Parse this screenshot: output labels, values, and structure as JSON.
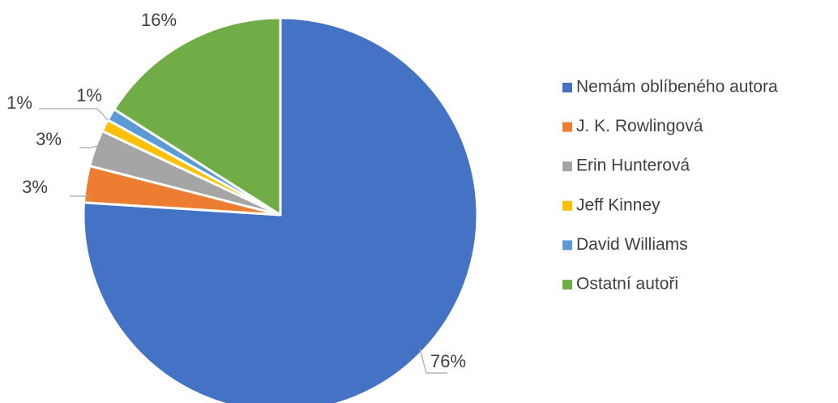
{
  "chart_data": {
    "type": "pie",
    "categories": [
      "Nemám oblíbeného autora",
      "J. K. Rowlingová",
      "Erin Hunterová",
      "Jeff Kinney",
      "David Williams",
      "Ostatní autoři"
    ],
    "values": [
      76,
      3,
      3,
      1,
      1,
      16
    ],
    "labels": [
      "76%",
      "3%",
      "3%",
      "1%",
      "1%",
      "16%"
    ],
    "colors": [
      "#4472C4",
      "#ED7D31",
      "#A5A5A5",
      "#FFC000",
      "#5B9BD5",
      "#70AD47"
    ],
    "start_angle_deg": 0,
    "direction": "clockwise",
    "legend_position": "right"
  }
}
